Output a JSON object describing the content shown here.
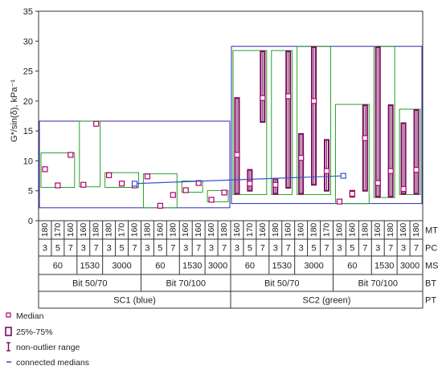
{
  "chart_data": {
    "type": "box",
    "ylabel": "G*/sin(δ), kPa⁻¹",
    "ylim": [
      0,
      35
    ],
    "y_ticks": [
      0,
      5,
      10,
      15,
      20,
      25,
      30,
      35
    ],
    "grid": false,
    "categories": [
      {
        "MT": "180",
        "PC": "3",
        "MS": "60",
        "BT": "Bit 50/70",
        "PT": "SC1 (blue)"
      },
      {
        "MT": "170",
        "PC": "5",
        "MS": "60",
        "BT": "Bit 50/70",
        "PT": "SC1 (blue)"
      },
      {
        "MT": "160",
        "PC": "7",
        "MS": "60",
        "BT": "Bit 50/70",
        "PT": "SC1 (blue)"
      },
      {
        "MT": "160",
        "PC": "3",
        "MS": "1530",
        "BT": "Bit 50/70",
        "PT": "SC1 (blue)"
      },
      {
        "MT": "180",
        "PC": "7",
        "MS": "1530",
        "BT": "Bit 50/70",
        "PT": "SC1 (blue)"
      },
      {
        "MT": "180",
        "PC": "3",
        "MS": "3000",
        "BT": "Bit 50/70",
        "PT": "SC1 (blue)"
      },
      {
        "MT": "170",
        "PC": "5",
        "MS": "3000",
        "BT": "Bit 50/70",
        "PT": "SC1 (blue)"
      },
      {
        "MT": "160",
        "PC": "7",
        "MS": "3000",
        "BT": "Bit 50/70",
        "PT": "SC1 (blue)"
      },
      {
        "MT": "180",
        "PC": "3",
        "MS": "60",
        "BT": "Bit 70/100",
        "PT": "SC1 (blue)"
      },
      {
        "MT": "160",
        "PC": "5",
        "MS": "60",
        "BT": "Bit 70/100",
        "PT": "SC1 (blue)"
      },
      {
        "MT": "180",
        "PC": "7",
        "MS": "60",
        "BT": "Bit 70/100",
        "PT": "SC1 (blue)"
      },
      {
        "MT": "160",
        "PC": "3",
        "MS": "1530",
        "BT": "Bit 70/100",
        "PT": "SC1 (blue)"
      },
      {
        "MT": "160",
        "PC": "7",
        "MS": "1530",
        "BT": "Bit 70/100",
        "PT": "SC1 (blue)"
      },
      {
        "MT": "160",
        "PC": "3",
        "MS": "3000",
        "BT": "Bit 70/100",
        "PT": "SC1 (blue)"
      },
      {
        "MT": "180",
        "PC": "7",
        "MS": "3000",
        "BT": "Bit 70/100",
        "PT": "SC1 (blue)"
      },
      {
        "MT": "160",
        "PC": "3",
        "MS": "60",
        "BT": "Bit 50/70",
        "PT": "SC2 (green)"
      },
      {
        "MT": "170",
        "PC": "5",
        "MS": "60",
        "BT": "Bit 50/70",
        "PT": "SC2 (green)"
      },
      {
        "MT": "160",
        "PC": "7",
        "MS": "60",
        "BT": "Bit 50/70",
        "PT": "SC2 (green)"
      },
      {
        "MT": "180",
        "PC": "3",
        "MS": "1530",
        "BT": "Bit 50/70",
        "PT": "SC2 (green)"
      },
      {
        "MT": "160",
        "PC": "7",
        "MS": "1530",
        "BT": "Bit 50/70",
        "PT": "SC2 (green)"
      },
      {
        "MT": "160",
        "PC": "3",
        "MS": "3000",
        "BT": "Bit 50/70",
        "PT": "SC2 (green)"
      },
      {
        "MT": "180",
        "PC": "5",
        "MS": "3000",
        "BT": "Bit 50/70",
        "PT": "SC2 (green)"
      },
      {
        "MT": "170",
        "PC": "7",
        "MS": "3000",
        "BT": "Bit 50/70",
        "PT": "SC2 (green)"
      },
      {
        "MT": "160",
        "PC": "3",
        "MS": "60",
        "BT": "Bit 70/100",
        "PT": "SC2 (green)"
      },
      {
        "MT": "160",
        "PC": "5",
        "MS": "60",
        "BT": "Bit 70/100",
        "PT": "SC2 (green)"
      },
      {
        "MT": "180",
        "PC": "7",
        "MS": "60",
        "BT": "Bit 70/100",
        "PT": "SC2 (green)"
      },
      {
        "MT": "160",
        "PC": "3",
        "MS": "1530",
        "BT": "Bit 70/100",
        "PT": "SC2 (green)"
      },
      {
        "MT": "180",
        "PC": "7",
        "MS": "1530",
        "BT": "Bit 70/100",
        "PT": "SC2 (green)"
      },
      {
        "MT": "160",
        "PC": "3",
        "MS": "3000",
        "BT": "Bit 70/100",
        "PT": "SC2 (green)"
      },
      {
        "MT": "180",
        "PC": "7",
        "MS": "3000",
        "BT": "Bit 70/100",
        "PT": "SC2 (green)"
      }
    ],
    "row_labels": [
      "MT",
      "PC",
      "MS",
      "BT",
      "PT"
    ],
    "series": [
      {
        "values": [
          {
            "median": 8.6,
            "q1": 8.4,
            "q3": 8.9,
            "min": 8.4,
            "max": 8.9
          },
          {
            "median": 5.9,
            "q1": 5.7,
            "q3": 6.1,
            "min": 5.7,
            "max": 6.1
          },
          {
            "median": 11.0,
            "q1": 10.8,
            "q3": 11.2,
            "min": 10.8,
            "max": 11.2
          },
          {
            "median": 6.0,
            "q1": 5.8,
            "q3": 6.2,
            "min": 5.8,
            "max": 6.2
          },
          {
            "median": 16.2,
            "q1": 16.0,
            "q3": 16.5,
            "min": 16.0,
            "max": 16.5
          },
          {
            "median": 7.6,
            "q1": 7.4,
            "q3": 7.9,
            "min": 7.4,
            "max": 7.9
          },
          {
            "median": 6.2,
            "q1": 6.0,
            "q3": 6.4,
            "min": 6.0,
            "max": 6.4
          },
          {
            "median": 5.9,
            "q1": 5.7,
            "q3": 6.1,
            "min": 5.7,
            "max": 6.1
          },
          {
            "median": 7.4,
            "q1": 7.2,
            "q3": 7.7,
            "min": 7.2,
            "max": 7.7
          },
          {
            "median": 2.5,
            "q1": 2.3,
            "q3": 2.7,
            "min": 2.3,
            "max": 2.7
          },
          {
            "median": 4.3,
            "q1": 4.1,
            "q3": 4.5,
            "min": 4.1,
            "max": 4.5
          },
          {
            "median": 5.1,
            "q1": 4.9,
            "q3": 5.3,
            "min": 4.9,
            "max": 5.3
          },
          {
            "median": 6.3,
            "q1": 6.1,
            "q3": 6.5,
            "min": 6.1,
            "max": 6.5
          },
          {
            "median": 3.5,
            "q1": 3.3,
            "q3": 3.7,
            "min": 3.3,
            "max": 3.7
          },
          {
            "median": 4.7,
            "q1": 4.5,
            "q3": 4.9,
            "min": 4.5,
            "max": 4.9
          },
          {
            "median": 11.0,
            "q1": 4.5,
            "q3": 20.5,
            "min": 4.5,
            "max": 20.5
          },
          {
            "median": 6.2,
            "q1": 5.0,
            "q3": 8.5,
            "min": 5.0,
            "max": 8.5
          },
          {
            "median": 20.5,
            "q1": 16.5,
            "q3": 28.3,
            "min": 16.5,
            "max": 28.3
          },
          {
            "median": 6.0,
            "q1": 4.5,
            "q3": 7.0,
            "min": 4.5,
            "max": 7.0
          },
          {
            "median": 20.8,
            "q1": 5.5,
            "q3": 28.3,
            "min": 5.5,
            "max": 28.3
          },
          {
            "median": 10.5,
            "q1": 4.5,
            "q3": 14.5,
            "min": 4.5,
            "max": 14.5
          },
          {
            "median": 20.0,
            "q1": 6.0,
            "q3": 29.0,
            "min": 6.0,
            "max": 29.0
          },
          {
            "median": 8.3,
            "q1": 5.0,
            "q3": 13.5,
            "min": 5.0,
            "max": 13.5
          },
          {
            "median": 3.2,
            "q1": 3.0,
            "q3": 3.5,
            "min": 3.0,
            "max": 3.5
          },
          {
            "median": 4.5,
            "q1": 4.0,
            "q3": 5.0,
            "min": 4.0,
            "max": 5.0
          },
          {
            "median": 13.8,
            "q1": 5.0,
            "q3": 19.3,
            "min": 5.0,
            "max": 19.3
          },
          {
            "median": 6.3,
            "q1": 4.0,
            "q3": 29.0,
            "min": 4.0,
            "max": 29.0
          },
          {
            "median": 8.3,
            "q1": 4.0,
            "q3": 19.3,
            "min": 4.0,
            "max": 19.3
          },
          {
            "median": 5.3,
            "q1": 4.5,
            "q3": 16.3,
            "min": 4.5,
            "max": 16.3
          },
          {
            "median": 8.5,
            "q1": 4.5,
            "q3": 18.5,
            "min": 4.5,
            "max": 18.5
          }
        ]
      }
    ],
    "connected_medians": [
      {
        "from_group": "SC1 (blue)",
        "to_group": "SC2 (green)",
        "values": [
          6.2,
          7.5
        ]
      }
    ],
    "legend": {
      "placement": "bottom-left",
      "entries": [
        {
          "label": "Median",
          "symbol": "median"
        },
        {
          "label": "25%-75%",
          "symbol": "box"
        },
        {
          "label": "non-outlier range",
          "symbol": "whisker"
        },
        {
          "label": "connected medians",
          "symbol": "line"
        }
      ]
    },
    "colors": {
      "box": "#7a0a5c",
      "median": "#b0006a",
      "range_rect": "#28a028",
      "group_rect": "#2828b0",
      "connect_line": "#3a55c8",
      "inner_box": "#e050e0"
    }
  }
}
